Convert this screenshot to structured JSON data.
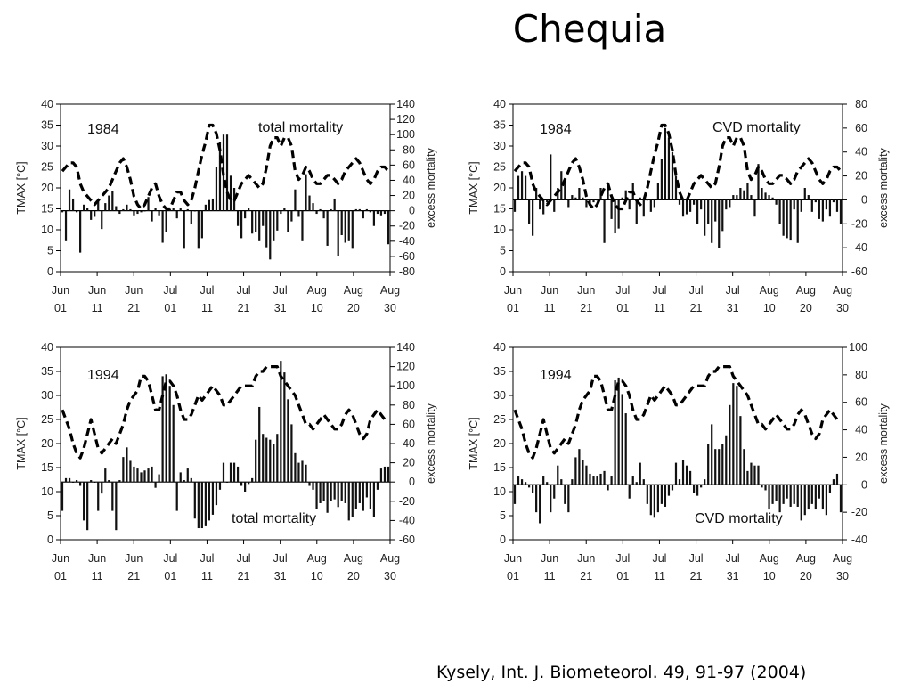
{
  "title": "Chequia",
  "citation": "Kysely, Int. J. Biometeorol. 49, 91-97 (2004)",
  "colors": {
    "ink": "#000000",
    "frame": "#000000",
    "background": "#ffffff"
  },
  "chart_data": [
    {
      "type": "bar",
      "year_label": "1984",
      "series_label": "total mortality",
      "ylabel_left": "TMAX [°C]",
      "ylabel_right": "excess mortality",
      "x_ticks": [
        [
          "Jun",
          "01"
        ],
        [
          "Jun",
          "11"
        ],
        [
          "Jun",
          "21"
        ],
        [
          "Jul",
          "01"
        ],
        [
          "Jul",
          "11"
        ],
        [
          "Jul",
          "21"
        ],
        [
          "Jul",
          "31"
        ],
        [
          "Aug",
          "10"
        ],
        [
          "Aug",
          "20"
        ],
        [
          "Aug",
          "30"
        ]
      ],
      "y_left_ticks": [
        "40",
        "35",
        "30",
        "25",
        "20",
        "15",
        "10",
        "5",
        "0"
      ],
      "y_right_ticks": [
        "140",
        "120",
        "100",
        "80",
        "60",
        "40",
        "20",
        "0",
        "-20",
        "-40",
        "-60",
        "-80"
      ],
      "ylim_left": [
        0,
        40
      ],
      "ylim_right": [
        -80,
        140
      ],
      "tmax": [
        24,
        25,
        26,
        26,
        25,
        21,
        19,
        18,
        17,
        16,
        17,
        18,
        19,
        20,
        22,
        24,
        26,
        27,
        25,
        22,
        18,
        16,
        15,
        16,
        18,
        20,
        21,
        18,
        16,
        15,
        15,
        17,
        19,
        19,
        17,
        16,
        17,
        20,
        24,
        28,
        31,
        35,
        35,
        33,
        29,
        23,
        19,
        17,
        17,
        19,
        21,
        22,
        23,
        22,
        21,
        20,
        21,
        25,
        30,
        32,
        32,
        30,
        32,
        32,
        30,
        24,
        22,
        23,
        25,
        24,
        22,
        21,
        21,
        22,
        23,
        23,
        22,
        21,
        22,
        24,
        25,
        26,
        27,
        26,
        24,
        22,
        21,
        22,
        24,
        25,
        25,
        24
      ],
      "mortality": [
        -2,
        -40,
        28,
        16,
        -2,
        -55,
        8,
        4,
        -12,
        -8,
        16,
        -24,
        10,
        20,
        26,
        6,
        -4,
        2,
        8,
        2,
        -6,
        -4,
        -2,
        0,
        18,
        -14,
        4,
        -6,
        -42,
        -28,
        2,
        4,
        -10,
        4,
        -50,
        2,
        -18,
        0,
        -50,
        -36,
        8,
        14,
        16,
        58,
        90,
        100,
        100,
        46,
        30,
        -20,
        -36,
        -10,
        4,
        -30,
        -28,
        -40,
        -20,
        -48,
        -64,
        -40,
        -26,
        -4,
        4,
        -28,
        -14,
        28,
        -8,
        -40,
        48,
        20,
        10,
        -4,
        2,
        -10,
        -46,
        2,
        16,
        -60,
        -32,
        -42,
        -40,
        -50,
        2,
        2,
        -10,
        2,
        -2,
        -20,
        -4,
        -6,
        -4,
        -44
      ]
    },
    {
      "type": "bar",
      "year_label": "1984",
      "series_label": "CVD mortality",
      "ylabel_left": "TMAX [°C]",
      "ylabel_right": "excess mortality",
      "x_ticks": [
        [
          "Jun",
          "01"
        ],
        [
          "Jun",
          "11"
        ],
        [
          "Jun",
          "21"
        ],
        [
          "Jul",
          "01"
        ],
        [
          "Jul",
          "11"
        ],
        [
          "Jul",
          "21"
        ],
        [
          "Jul",
          "31"
        ],
        [
          "Aug",
          "10"
        ],
        [
          "Aug",
          "20"
        ],
        [
          "Aug",
          "30"
        ]
      ],
      "y_left_ticks": [
        "40",
        "35",
        "30",
        "25",
        "20",
        "15",
        "10",
        "5",
        "0"
      ],
      "y_right_ticks": [
        "80",
        "60",
        "40",
        "20",
        "0",
        "-20",
        "-40",
        "-60"
      ],
      "ylim_left": [
        0,
        40
      ],
      "ylim_right": [
        -60,
        80
      ],
      "tmax": [
        24,
        25,
        26,
        26,
        25,
        21,
        19,
        18,
        17,
        16,
        17,
        18,
        19,
        20,
        22,
        24,
        26,
        27,
        25,
        22,
        18,
        16,
        15,
        16,
        18,
        20,
        21,
        18,
        16,
        15,
        15,
        17,
        19,
        19,
        17,
        16,
        17,
        20,
        24,
        28,
        31,
        35,
        35,
        33,
        29,
        23,
        19,
        17,
        17,
        19,
        21,
        22,
        23,
        22,
        21,
        20,
        21,
        25,
        30,
        32,
        32,
        30,
        32,
        32,
        30,
        24,
        22,
        23,
        25,
        24,
        22,
        21,
        21,
        22,
        23,
        23,
        22,
        21,
        22,
        24,
        25,
        26,
        27,
        26,
        24,
        22,
        21,
        22,
        24,
        25,
        25,
        24
      ],
      "mortality": [
        -10,
        20,
        24,
        20,
        -20,
        -30,
        10,
        -8,
        -12,
        -2,
        38,
        -10,
        10,
        24,
        16,
        -6,
        4,
        2,
        10,
        2,
        -6,
        -4,
        -2,
        0,
        10,
        -36,
        14,
        -16,
        -28,
        -24,
        2,
        8,
        -8,
        14,
        -20,
        2,
        -14,
        0,
        -10,
        -6,
        14,
        34,
        60,
        52,
        40,
        20,
        -4,
        -14,
        -12,
        -10,
        -4,
        -20,
        -8,
        -30,
        -20,
        -36,
        -18,
        -40,
        -26,
        -8,
        -6,
        4,
        4,
        10,
        8,
        14,
        4,
        -14,
        30,
        10,
        6,
        4,
        2,
        -4,
        -20,
        -30,
        -32,
        -34,
        -8,
        -36,
        -10,
        10,
        4,
        -10,
        -2,
        -16,
        -18,
        -8,
        -14,
        -2,
        -10,
        -20
      ]
    },
    {
      "type": "bar",
      "year_label": "1994",
      "series_label": "total mortality",
      "ylabel_left": "TMAX [°C]",
      "ylabel_right": "excess mortality",
      "x_ticks": [
        [
          "Jun",
          "01"
        ],
        [
          "Jun",
          "11"
        ],
        [
          "Jun",
          "21"
        ],
        [
          "Jul",
          "01"
        ],
        [
          "Jul",
          "11"
        ],
        [
          "Jul",
          "21"
        ],
        [
          "Jul",
          "31"
        ],
        [
          "Aug",
          "10"
        ],
        [
          "Aug",
          "20"
        ],
        [
          "Aug",
          "30"
        ]
      ],
      "y_left_ticks": [
        "40",
        "35",
        "30",
        "25",
        "20",
        "15",
        "10",
        "5",
        "0"
      ],
      "y_right_ticks": [
        "140",
        "120",
        "100",
        "80",
        "60",
        "40",
        "20",
        "0",
        "-20",
        "-40",
        "-60"
      ],
      "ylim_left": [
        0,
        40
      ],
      "ylim_right": [
        -60,
        140
      ],
      "tmax": [
        27,
        25,
        23,
        20,
        18,
        17,
        19,
        22,
        25,
        22,
        19,
        18,
        19,
        20,
        21,
        20,
        22,
        24,
        27,
        29,
        30,
        31,
        34,
        34,
        33,
        30,
        27,
        27,
        30,
        33,
        33,
        32,
        30,
        27,
        25,
        25,
        26,
        28,
        30,
        29,
        30,
        31,
        32,
        31,
        30,
        28,
        28,
        29,
        30,
        31,
        32,
        32,
        32,
        32,
        34,
        35,
        35,
        36,
        36,
        36,
        36,
        34,
        33,
        32,
        31,
        30,
        28,
        26,
        24,
        24,
        23,
        24,
        25,
        26,
        25,
        24,
        23,
        23,
        24,
        26,
        27,
        26,
        24,
        22,
        21,
        22,
        25,
        26,
        27,
        26,
        25,
        25
      ],
      "mortality": [
        -30,
        4,
        4,
        0,
        2,
        -4,
        -40,
        -50,
        2,
        0,
        -30,
        -12,
        14,
        2,
        -30,
        -50,
        2,
        26,
        36,
        22,
        16,
        14,
        10,
        12,
        14,
        16,
        -6,
        8,
        110,
        112,
        100,
        80,
        -30,
        10,
        2,
        14,
        4,
        -38,
        -48,
        -48,
        -46,
        -40,
        -34,
        -24,
        -8,
        20,
        0,
        20,
        20,
        16,
        -4,
        -10,
        -2,
        4,
        44,
        78,
        50,
        46,
        44,
        40,
        50,
        126,
        114,
        86,
        60,
        30,
        20,
        22,
        18,
        -4,
        -8,
        -28,
        -22,
        -20,
        -32,
        -20,
        -18,
        -26,
        -20,
        -22,
        -40,
        -36,
        -28,
        -22,
        -30,
        -16,
        -28,
        -36,
        -8,
        14,
        16,
        16
      ]
    },
    {
      "type": "bar",
      "year_label": "1994",
      "series_label": "CVD mortality",
      "ylabel_left": "TMAX [°C]",
      "ylabel_right": "excess mortality",
      "x_ticks": [
        [
          "Jun",
          "01"
        ],
        [
          "Jun",
          "11"
        ],
        [
          "Jun",
          "21"
        ],
        [
          "Jul",
          "01"
        ],
        [
          "Jul",
          "11"
        ],
        [
          "Jul",
          "21"
        ],
        [
          "Jul",
          "31"
        ],
        [
          "Aug",
          "10"
        ],
        [
          "Aug",
          "20"
        ],
        [
          "Aug",
          "30"
        ]
      ],
      "y_left_ticks": [
        "40",
        "35",
        "30",
        "25",
        "20",
        "15",
        "10",
        "5",
        "0"
      ],
      "y_right_ticks": [
        "100",
        "80",
        "60",
        "40",
        "20",
        "0",
        "-20",
        "-40"
      ],
      "ylim_left": [
        0,
        40
      ],
      "ylim_right": [
        -40,
        100
      ],
      "tmax": [
        27,
        25,
        23,
        20,
        18,
        17,
        19,
        22,
        25,
        22,
        19,
        18,
        19,
        20,
        21,
        20,
        22,
        24,
        27,
        29,
        30,
        31,
        34,
        34,
        33,
        30,
        27,
        27,
        30,
        33,
        33,
        32,
        30,
        27,
        25,
        25,
        26,
        28,
        30,
        29,
        30,
        31,
        32,
        31,
        30,
        28,
        28,
        29,
        30,
        31,
        32,
        32,
        32,
        32,
        34,
        35,
        35,
        36,
        36,
        36,
        36,
        34,
        33,
        32,
        31,
        30,
        28,
        26,
        24,
        24,
        23,
        24,
        25,
        26,
        25,
        24,
        23,
        23,
        24,
        26,
        27,
        26,
        24,
        22,
        21,
        22,
        25,
        26,
        27,
        26,
        25,
        25
      ],
      "mortality": [
        -14,
        6,
        4,
        2,
        -2,
        -6,
        -20,
        -28,
        6,
        2,
        -20,
        -10,
        14,
        4,
        -14,
        -20,
        4,
        20,
        26,
        18,
        14,
        8,
        6,
        6,
        8,
        10,
        -4,
        6,
        76,
        78,
        66,
        52,
        -10,
        6,
        2,
        16,
        4,
        -14,
        -22,
        -24,
        -20,
        -14,
        -16,
        -8,
        -4,
        16,
        4,
        18,
        14,
        10,
        -6,
        -8,
        -2,
        4,
        30,
        44,
        26,
        26,
        30,
        36,
        58,
        74,
        72,
        50,
        26,
        10,
        16,
        14,
        14,
        -2,
        -4,
        -18,
        -14,
        -12,
        -20,
        -14,
        -10,
        -16,
        -14,
        -16,
        -26,
        -22,
        -18,
        -14,
        -18,
        -10,
        -18,
        -22,
        -6,
        4,
        8,
        -20
      ]
    }
  ]
}
